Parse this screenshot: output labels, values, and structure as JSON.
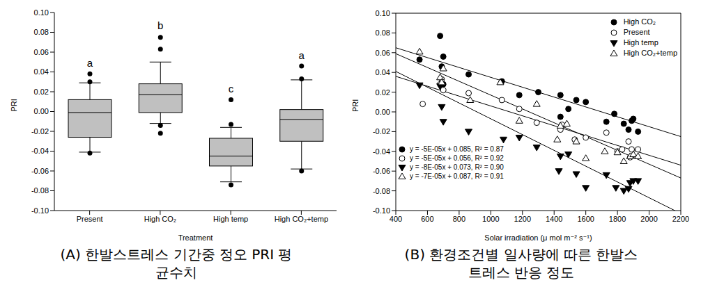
{
  "chart_data": [
    {
      "type": "box",
      "title": "(A) 한발스트레스 기간중 정오 PRI 평균수치",
      "x_label": "Treatment",
      "y_label": "PRI",
      "categories": [
        "Present",
        "High CO₂",
        "High temp",
        "High CO₂+temp"
      ],
      "color": "#c0c0c0",
      "boxes": [
        {
          "whisker_low": -0.041,
          "q1": -0.026,
          "median": -0.001,
          "q3": 0.012,
          "whisker_high": 0.029,
          "outliers": [
            0.038,
            0.03,
            -0.042
          ]
        },
        {
          "whisker_low": -0.012,
          "q1": -0.001,
          "median": 0.017,
          "q3": 0.028,
          "whisker_high": 0.05,
          "outliers": [
            0.075,
            0.063,
            -0.014,
            -0.022
          ]
        },
        {
          "whisker_low": -0.071,
          "q1": -0.055,
          "median": -0.045,
          "q3": -0.027,
          "whisker_high": -0.016,
          "outliers": [
            0.012,
            -0.013,
            -0.074
          ]
        },
        {
          "whisker_low": -0.058,
          "q1": -0.03,
          "median": -0.008,
          "q3": 0.002,
          "whisker_high": 0.032,
          "outliers": [
            0.046,
            0.033,
            -0.06
          ]
        }
      ],
      "annotations": [
        {
          "category": "Present",
          "text": "a",
          "y": 0.045
        },
        {
          "category": "High CO₂",
          "text": "b",
          "y": 0.083
        },
        {
          "category": "High temp",
          "text": "c",
          "y": 0.019
        },
        {
          "category": "High CO₂+temp",
          "text": "a",
          "y": 0.053
        }
      ],
      "ylim": [
        -0.1,
        0.1
      ],
      "yticks": [
        {
          "value": -0.1,
          "label": "-0.10"
        },
        {
          "value": -0.08,
          "label": "-0.08"
        },
        {
          "value": -0.06,
          "label": "-0.06"
        },
        {
          "value": -0.04,
          "label": "-0.04"
        },
        {
          "value": -0.02,
          "label": "-0.02"
        },
        {
          "value": 0,
          "label": "0.00"
        },
        {
          "value": 0.02,
          "label": "0.02"
        },
        {
          "value": 0.04,
          "label": "0.04"
        },
        {
          "value": 0.06,
          "label": "0.06"
        },
        {
          "value": 0.08,
          "label": "0.08"
        },
        {
          "value": 0.1,
          "label": "0.10"
        }
      ]
    },
    {
      "type": "scatter",
      "title": "(B) 환경조건별 일사량에 따른 한발스트레스 반응 정도",
      "x_label": "Solar irradiation (μ mol m⁻² s⁻¹)",
      "y_label": "PRI",
      "legend": "upper right",
      "xlim": [
        400,
        2200
      ],
      "xticks": [
        400,
        600,
        800,
        1000,
        1200,
        1400,
        1600,
        1800,
        2000,
        2200
      ],
      "ylim": [
        -0.1,
        0.1
      ],
      "yticks": [
        {
          "value": -0.1,
          "label": "-0.10"
        },
        {
          "value": -0.08,
          "label": "-0.08"
        },
        {
          "value": -0.06,
          "label": "-0.06"
        },
        {
          "value": -0.04,
          "label": "-0.04"
        },
        {
          "value": -0.02,
          "label": "-0.02"
        },
        {
          "value": 0,
          "label": "0.00"
        },
        {
          "value": 0.02,
          "label": "0.02"
        },
        {
          "value": 0.04,
          "label": "0.04"
        },
        {
          "value": 0.06,
          "label": "0.06"
        },
        {
          "value": 0.08,
          "label": "0.08"
        },
        {
          "value": 0.1,
          "label": "0.10"
        }
      ],
      "series": [
        {
          "name": "High CO₂",
          "color": "#000000",
          "marker": "circle",
          "x": [
            550,
            680,
            690,
            700,
            700,
            860,
            1070,
            1180,
            1300,
            1440,
            1440,
            1490,
            1540,
            1600,
            1780,
            1730,
            1840,
            1870,
            1890,
            1900,
            1930
          ],
          "values": [
            0.053,
            0.077,
            0.046,
            0.056,
            0.028,
            0.038,
            0.031,
            0.017,
            0.02,
            0.017,
            -0.005,
            0.003,
            0.012,
            0.01,
            -0.002,
            -0.01,
            -0.012,
            -0.018,
            -0.009,
            -0.007,
            -0.02
          ],
          "fit": {
            "x": [
              400,
              2200
            ],
            "values": [
              0.065,
              -0.025
            ]
          },
          "equation": "y = -5E-05x + 0.085, R² = 0.87"
        },
        {
          "name": "Present",
          "color": "#000000",
          "marker": "circle-open",
          "x": [
            570,
            680,
            690,
            700,
            860,
            1070,
            1180,
            1290,
            1440,
            1450,
            1530,
            1600,
            1730,
            1800,
            1830,
            1870,
            1880,
            1890,
            1930
          ],
          "values": [
            0.008,
            0.028,
            0.033,
            0.022,
            0.019,
            0.012,
            0.003,
            -0.011,
            -0.018,
            -0.013,
            -0.028,
            -0.026,
            -0.021,
            -0.04,
            -0.038,
            -0.03,
            -0.046,
            -0.038,
            -0.038
          ],
          "fit": {
            "x": [
              400,
              2200
            ],
            "values": [
              0.036,
              -0.054
            ]
          },
          "equation": "y = -5E-05x + 0.056, R² = 0.92"
        },
        {
          "name": "High temp",
          "color": "#000000",
          "marker": "triangle-down",
          "x": [
            550,
            680,
            690,
            700,
            860,
            1080,
            1180,
            1290,
            1430,
            1440,
            1490,
            1540,
            1600,
            1730,
            1790,
            1840,
            1870,
            1880,
            1900,
            1930
          ],
          "values": [
            0.027,
            0.026,
            0.005,
            -0.01,
            -0.02,
            -0.028,
            -0.026,
            -0.036,
            -0.06,
            -0.045,
            -0.043,
            -0.063,
            -0.077,
            -0.064,
            -0.077,
            -0.08,
            -0.078,
            -0.072,
            -0.07,
            -0.07
          ],
          "fit": {
            "x": [
              400,
              2200
            ],
            "values": [
              0.041,
              -0.103
            ]
          },
          "equation": "y = -8E-05x + 0.073, R² = 0.90"
        },
        {
          "name": "High CO₂+temp",
          "color": "#000000",
          "marker": "triangle-open",
          "x": [
            550,
            680,
            690,
            700,
            870,
            1060,
            1180,
            1290,
            1420,
            1440,
            1480,
            1540,
            1600,
            1720,
            1800,
            1840,
            1880,
            1900,
            1930
          ],
          "values": [
            0.061,
            0.035,
            0.03,
            0.044,
            0.012,
            0.03,
            -0.009,
            0.008,
            -0.028,
            -0.014,
            -0.012,
            -0.03,
            -0.047,
            -0.04,
            -0.041,
            -0.05,
            -0.045,
            -0.043,
            -0.045
          ],
          "fit": {
            "x": [
              400,
              2200
            ],
            "values": [
              0.059,
              -0.067
            ]
          },
          "equation": "y = -7E-05x + 0.087, R² = 0.91"
        }
      ]
    }
  ]
}
